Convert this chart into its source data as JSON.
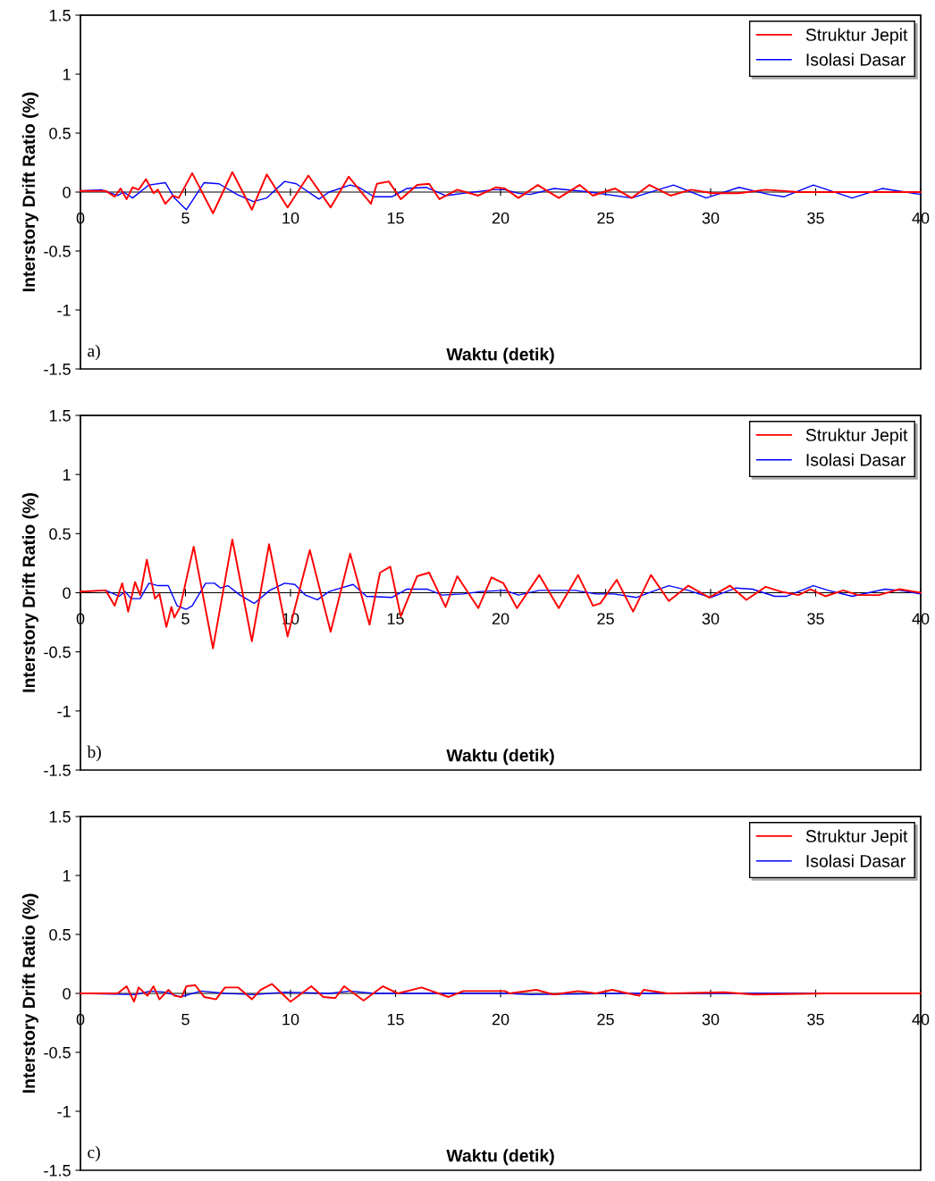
{
  "chart_data": [
    {
      "type": "line",
      "xlabel": "Waktu (detik)",
      "ylabel": "Interstory Drift Ratio (%)",
      "annotations": [
        "a)"
      ],
      "xlim": [
        0,
        40
      ],
      "ylim": [
        -1.5,
        1.5
      ],
      "xticks": [
        0,
        5,
        10,
        15,
        20,
        25,
        30,
        35,
        40
      ],
      "yticks": [
        -1.5,
        -1,
        -0.5,
        0,
        0.5,
        1,
        1.5
      ],
      "grid": false,
      "legend": "top right",
      "marker": "none",
      "line_style": "solid",
      "series": [
        {
          "name": "Struktur Jepit",
          "color": "#ff0000",
          "x": [
            0,
            1.2,
            1.63,
            1.91,
            2.2,
            2.48,
            2.77,
            3.12,
            3.48,
            3.69,
            4.04,
            4.4,
            4.68,
            5.32,
            6.31,
            7.23,
            8.16,
            8.87,
            9.86,
            10.85,
            11.91,
            12.77,
            13.83,
            14.11,
            14.68,
            15.25,
            16.03,
            16.6,
            17.09,
            17.94,
            18.94,
            19.79,
            20.21,
            20.85,
            21.77,
            22.77,
            23.76,
            24.4,
            24.89,
            25.46,
            26.24,
            27.09,
            28.09,
            29.08,
            30.07,
            31.35,
            32.62,
            34.18,
            35.6,
            37.02,
            38.44,
            40
          ],
          "values": [
            0.01,
            0.01,
            -0.04,
            0.03,
            -0.06,
            0.04,
            0.02,
            0.11,
            -0.01,
            0.02,
            -0.1,
            -0.03,
            -0.05,
            0.16,
            -0.18,
            0.17,
            -0.15,
            0.15,
            -0.13,
            0.14,
            -0.13,
            0.13,
            -0.1,
            0.07,
            0.09,
            -0.06,
            0.06,
            0.07,
            -0.06,
            0.02,
            -0.03,
            0.04,
            0.03,
            -0.05,
            0.06,
            -0.05,
            0.06,
            -0.03,
            0,
            0.03,
            -0.05,
            0.06,
            -0.03,
            0.02,
            -0.01,
            -0.01,
            0.02,
            0,
            0,
            0,
            0,
            0
          ]
        },
        {
          "name": "Isolasi Dasar",
          "color": "#0000ff",
          "x": [
            0,
            0.99,
            1.77,
            2.06,
            2.48,
            3.26,
            4.04,
            4.47,
            5.04,
            5.89,
            6.6,
            7.45,
            8.23,
            8.87,
            9.72,
            10.28,
            11.35,
            11.84,
            12.84,
            13.26,
            13.97,
            14.82,
            15.53,
            16.45,
            17.38,
            18.23,
            19.65,
            20.21,
            20.85,
            21.42,
            22.55,
            24.26,
            26.24,
            28.23,
            29.79,
            31.35,
            32.77,
            33.48,
            34.89,
            36.74,
            38.16,
            40
          ],
          "values": [
            0.01,
            0.02,
            -0.03,
            0,
            -0.05,
            0.06,
            0.08,
            -0.05,
            -0.15,
            0.08,
            0.07,
            -0.02,
            -0.08,
            -0.05,
            0.09,
            0.07,
            -0.06,
            0,
            0.06,
            0.04,
            -0.04,
            -0.04,
            0.03,
            0.04,
            -0.03,
            -0.01,
            0.02,
            0.02,
            -0.01,
            -0.02,
            0.03,
            0,
            -0.05,
            0.06,
            -0.05,
            0.04,
            -0.02,
            -0.04,
            0.06,
            -0.05,
            0.03,
            -0.02
          ]
        }
      ]
    },
    {
      "type": "line",
      "xlabel": "Waktu (detik)",
      "ylabel": "Interstory Drift Ratio (%)",
      "annotations": [
        "b)"
      ],
      "xlim": [
        0,
        40
      ],
      "ylim": [
        -1.5,
        1.5
      ],
      "xticks": [
        0,
        5,
        10,
        15,
        20,
        25,
        30,
        35,
        40
      ],
      "yticks": [
        -1.5,
        -1,
        -0.5,
        0,
        0.5,
        1,
        1.5
      ],
      "grid": false,
      "legend": "top right",
      "marker": "none",
      "line_style": "solid",
      "series": [
        {
          "name": "Struktur Jepit",
          "color": "#ff0000",
          "x": [
            0,
            1.2,
            1.63,
            1.99,
            2.27,
            2.6,
            2.84,
            3.16,
            3.55,
            3.76,
            4.09,
            4.33,
            4.47,
            4.75,
            5.39,
            6.31,
            7.23,
            8.16,
            8.98,
            9.86,
            10.92,
            11.91,
            12.84,
            13.76,
            14.26,
            14.75,
            15.25,
            16.03,
            16.6,
            17.38,
            17.94,
            18.94,
            19.57,
            20.14,
            20.78,
            21.84,
            22.77,
            23.69,
            24.4,
            24.75,
            25.53,
            26.31,
            27.16,
            28.01,
            28.94,
            29.93,
            30.92,
            31.7,
            32.62,
            33.33,
            34.18,
            34.75,
            35.46,
            36.31,
            37.02,
            38.01,
            39,
            40
          ],
          "values": [
            0.01,
            0.02,
            -0.11,
            0.08,
            -0.16,
            0.09,
            -0.02,
            0.28,
            -0.05,
            -0.01,
            -0.29,
            -0.12,
            -0.21,
            -0.12,
            0.39,
            -0.47,
            0.45,
            -0.41,
            0.41,
            -0.37,
            0.36,
            -0.33,
            0.33,
            -0.27,
            0.17,
            0.22,
            -0.2,
            0.14,
            0.17,
            -0.12,
            0.14,
            -0.13,
            0.13,
            0.08,
            -0.13,
            0.15,
            -0.13,
            0.15,
            -0.11,
            -0.09,
            0.11,
            -0.16,
            0.15,
            -0.07,
            0.06,
            -0.04,
            0.06,
            -0.06,
            0.05,
            0.01,
            -0.02,
            0.03,
            -0.03,
            0.02,
            -0.02,
            -0.02,
            0.03,
            0
          ]
        },
        {
          "name": "Isolasi Dasar",
          "color": "#0000ff",
          "x": [
            0,
            1.2,
            1.84,
            2.13,
            2.41,
            2.84,
            3.26,
            3.69,
            4.18,
            4.6,
            5.04,
            5.32,
            5.96,
            6.38,
            6.67,
            7.02,
            7.59,
            8.27,
            9.01,
            9.72,
            10.21,
            10.71,
            11.28,
            11.84,
            12.41,
            12.98,
            13.62,
            14.82,
            15.53,
            16.52,
            17.23,
            18.23,
            19.06,
            20.21,
            20.85,
            21.84,
            23.55,
            24.54,
            25.39,
            26.45,
            27.38,
            28.01,
            28.94,
            30,
            31.21,
            31.99,
            33.05,
            33.62,
            34.89,
            35.6,
            36.74,
            38.3,
            39,
            40
          ],
          "values": [
            0.01,
            0.02,
            -0.03,
            0.01,
            -0.05,
            -0.05,
            0.08,
            0.06,
            0.06,
            -0.11,
            -0.14,
            -0.11,
            0.08,
            0.08,
            0.04,
            0.06,
            -0.02,
            -0.09,
            0.02,
            0.08,
            0.07,
            -0.02,
            -0.06,
            0.01,
            0.04,
            0.07,
            -0.03,
            -0.04,
            0.03,
            0.03,
            -0.02,
            -0.01,
            0.01,
            0.02,
            -0.02,
            0.02,
            0.02,
            -0.01,
            -0.01,
            -0.04,
            0.02,
            0.06,
            0.02,
            -0.04,
            0.04,
            0.03,
            -0.03,
            -0.03,
            0.06,
            0.02,
            -0.03,
            0.03,
            0.02,
            -0.01
          ]
        }
      ]
    },
    {
      "type": "line",
      "xlabel": "Waktu (detik)",
      "ylabel": "Interstory Drift Ratio (%)",
      "annotations": [
        "c)"
      ],
      "xlim": [
        0,
        40
      ],
      "ylim": [
        -1.5,
        1.5
      ],
      "xticks": [
        0,
        5,
        10,
        15,
        20,
        25,
        30,
        35,
        40
      ],
      "yticks": [
        -1.5,
        -1,
        -0.5,
        0,
        0.5,
        1,
        1.5
      ],
      "grid": false,
      "legend": "top right",
      "marker": "none",
      "line_style": "solid",
      "series": [
        {
          "name": "Struktur Jepit",
          "color": "#ff0000",
          "x": [
            0,
            1.77,
            2.2,
            2.55,
            2.77,
            3.19,
            3.48,
            3.76,
            4.18,
            4.47,
            4.82,
            5.04,
            5.46,
            5.89,
            6.45,
            6.88,
            7.52,
            8.16,
            8.57,
            9.12,
            10,
            10.99,
            11.56,
            12.13,
            12.55,
            13.48,
            14.4,
            15.11,
            16.24,
            17.52,
            18.23,
            20.21,
            20.43,
            21.7,
            22.55,
            23.69,
            24.54,
            25.32,
            25.82,
            26.6,
            26.81,
            27.94,
            30.64,
            32.06,
            35.6,
            40
          ],
          "values": [
            0,
            0,
            0.06,
            -0.07,
            0.05,
            -0.02,
            0.06,
            -0.05,
            0.03,
            -0.02,
            -0.03,
            0.06,
            0.07,
            -0.03,
            -0.05,
            0.05,
            0.05,
            -0.05,
            0.03,
            0.08,
            -0.07,
            0.06,
            -0.03,
            -0.04,
            0.06,
            -0.06,
            0.06,
            0,
            0.05,
            -0.03,
            0.02,
            0.02,
            0,
            0.03,
            -0.01,
            0.02,
            0,
            0.03,
            0.01,
            -0.02,
            0.03,
            0,
            0.01,
            -0.01,
            0,
            0
          ]
        },
        {
          "name": "Isolasi Dasar",
          "color": "#0000ff",
          "x": [
            0,
            2.62,
            3.33,
            4.04,
            4.75,
            5.74,
            6.88,
            8.3,
            9.72,
            11.84,
            12.84,
            13.97,
            20.21,
            21.42,
            25.67,
            29.93,
            40
          ],
          "values": [
            0,
            -0.01,
            0.02,
            0.01,
            -0.03,
            0.02,
            0,
            -0.01,
            0.01,
            0,
            0.02,
            0,
            0,
            -0.01,
            0,
            0,
            0
          ]
        }
      ]
    }
  ]
}
